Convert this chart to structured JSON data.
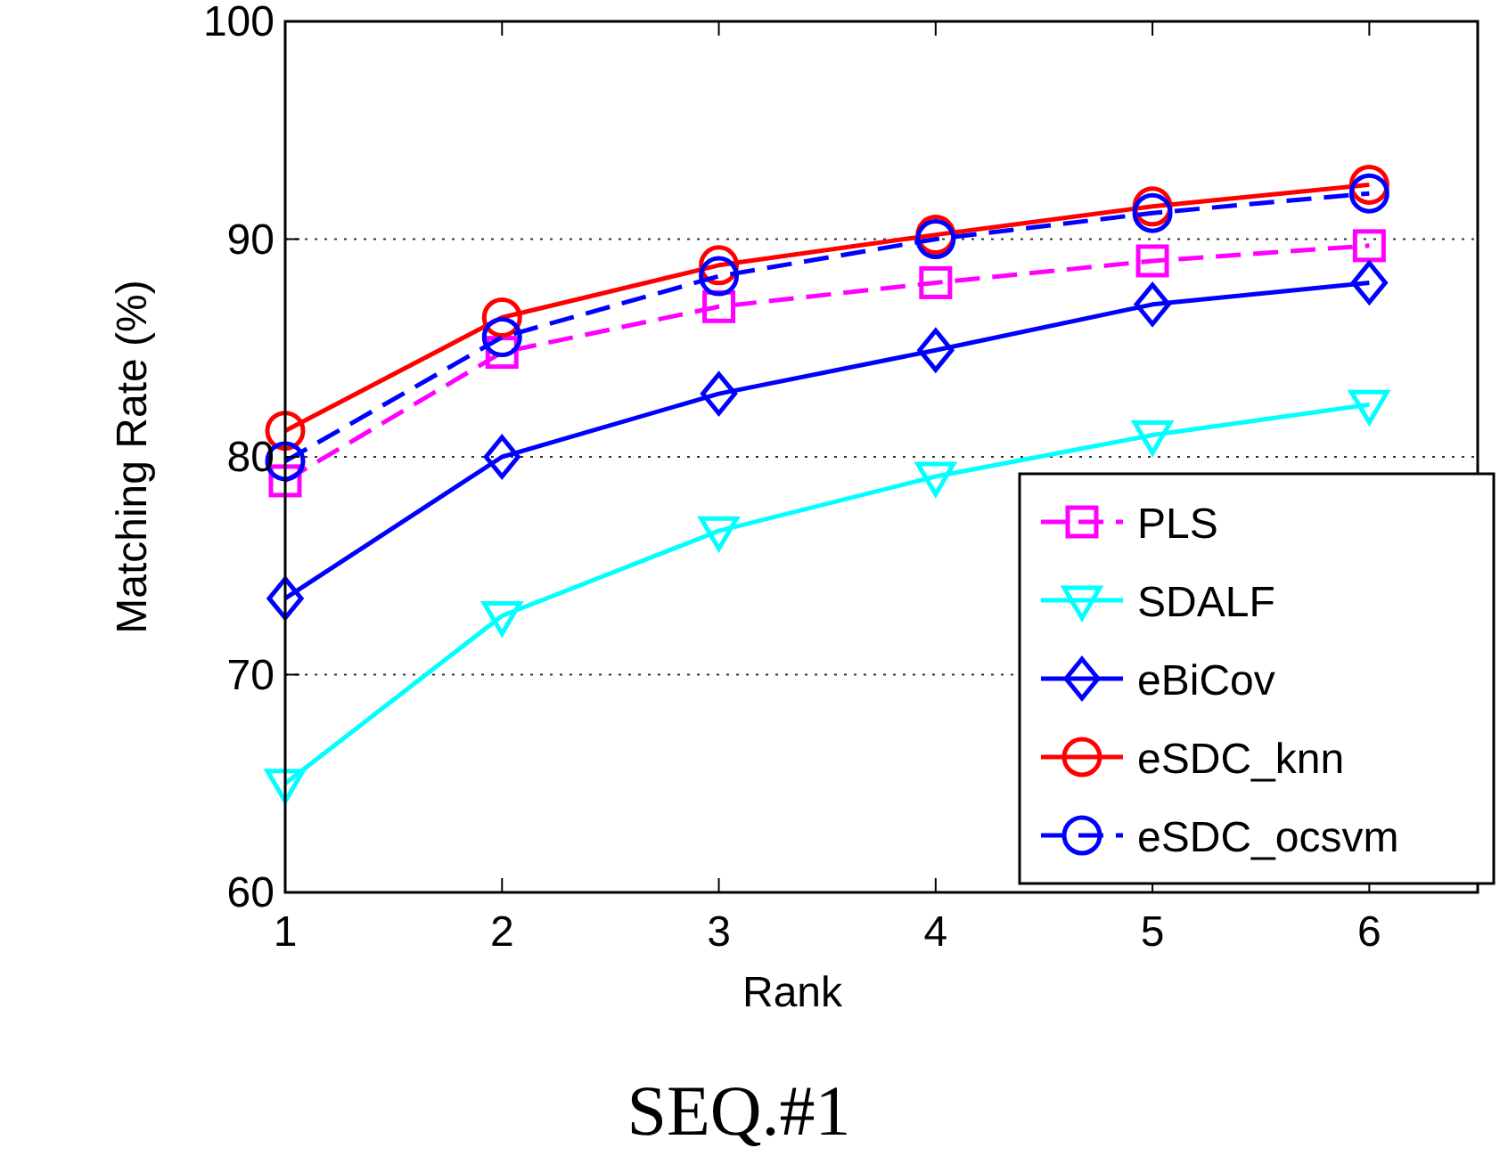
{
  "chart_data": {
    "type": "line",
    "title": "SEQ.#1",
    "xlabel": "Rank",
    "ylabel": "Matching Rate (%)",
    "x": [
      1,
      2,
      3,
      4,
      5,
      6
    ],
    "xlim": [
      1,
      6.5
    ],
    "xticks": [
      1,
      2,
      3,
      4,
      5,
      6
    ],
    "ylim": [
      60,
      100
    ],
    "yticks": [
      60,
      70,
      80,
      90,
      100
    ],
    "grid": "y",
    "legend": "bottom right",
    "series": [
      {
        "name": "PLS",
        "color": "#ff00ff",
        "marker": "square",
        "line_style": "dashed",
        "values": [
          78.9,
          84.8,
          86.9,
          88.0,
          89.0,
          89.7
        ]
      },
      {
        "name": "SDALF",
        "color": "#00ffff",
        "marker": "triangle",
        "line_style": "solid",
        "values": [
          65.0,
          72.7,
          76.6,
          79.1,
          81.0,
          82.4
        ]
      },
      {
        "name": "eBiCov",
        "color": "#0000ff",
        "marker": "diamond",
        "line_style": "solid",
        "values": [
          73.5,
          80.0,
          82.9,
          84.9,
          87.0,
          88.0
        ]
      },
      {
        "name": "eSDC_knn",
        "color": "#ff0000",
        "marker": "circle",
        "line_style": "solid",
        "values": [
          81.2,
          86.4,
          88.8,
          90.2,
          91.5,
          92.5
        ]
      },
      {
        "name": "eSDC_ocsvm",
        "color": "#0000ff",
        "marker": "circle",
        "line_style": "dashed",
        "values": [
          79.8,
          85.5,
          88.3,
          90.0,
          91.2,
          92.1
        ]
      }
    ]
  }
}
